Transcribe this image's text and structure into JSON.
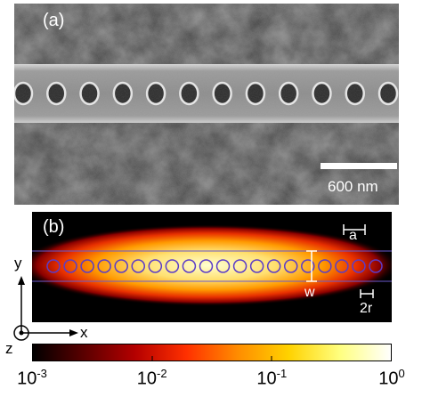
{
  "figure": {
    "panel_a": {
      "label": "(a)",
      "scale_bar_label": "600 nm",
      "hole_count": 12
    },
    "panel_b": {
      "label": "(b)",
      "dimension_labels": {
        "a": "a",
        "w": "w",
        "r": "2r"
      },
      "hole_count": 20
    },
    "axes": {
      "y": "y",
      "x": "x",
      "z": "z"
    },
    "colorbar": {
      "tick_labels": [
        {
          "base": "10",
          "exp": "-3"
        },
        {
          "base": "10",
          "exp": "-2"
        },
        {
          "base": "10",
          "exp": "-1"
        },
        {
          "base": "10",
          "exp": "0"
        }
      ],
      "scale": "log",
      "range": [
        "1e-3",
        "1e0"
      ],
      "colormap": [
        "#000000",
        "#5a0000",
        "#b40000",
        "#ff3000",
        "#ff8c00",
        "#ffd200",
        "#ffff80",
        "#ffffff"
      ]
    }
  }
}
